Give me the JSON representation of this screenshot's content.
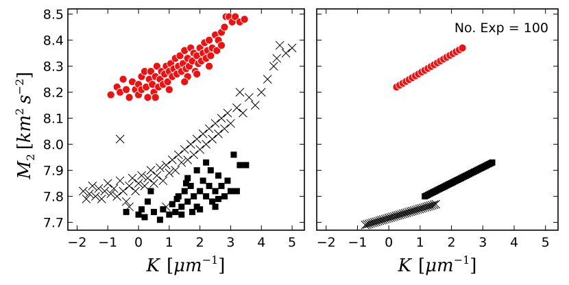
{
  "chart_data": [
    {
      "type": "scatter",
      "panel": "left",
      "xlabel": "K [μm⁻¹]",
      "ylabel": "M₂ [km² s⁻²]",
      "xlabel_parts": {
        "var": "K",
        "unit_open": "[",
        "unit": "μm",
        "exp": "−1",
        "unit_close": "]"
      },
      "ylabel_parts": {
        "var": "M",
        "sub": "2",
        "unit_open": "[",
        "unit1": "km",
        "exp1": "2",
        "unit2": "s",
        "exp2": "−2",
        "unit_close": "]"
      },
      "xlim": [
        -2.3,
        5.4
      ],
      "ylim": [
        7.67,
        8.52
      ],
      "xticks": [
        -2,
        -1,
        0,
        1,
        2,
        3,
        4,
        5
      ],
      "xtick_labels": [
        "−2",
        "−1",
        "0",
        "1",
        "2",
        "3",
        "4",
        "5"
      ],
      "yticks": [
        7.7,
        7.8,
        7.9,
        8.0,
        8.1,
        8.2,
        8.3,
        8.4,
        8.5
      ],
      "ytick_labels": [
        "7.7",
        "7.8",
        "7.9",
        "8.0",
        "8.1",
        "8.2",
        "8.3",
        "8.4",
        "8.5"
      ],
      "grid": false,
      "series": [
        {
          "name": "red circles",
          "marker": "circle",
          "color": "#ee1111",
          "edge": "#ffffff",
          "points": [
            [
              -0.9,
              8.19
            ],
            [
              -0.7,
              8.22
            ],
            [
              -0.6,
              8.2
            ],
            [
              -0.5,
              8.25
            ],
            [
              -0.4,
              8.21
            ],
            [
              -0.3,
              8.18
            ],
            [
              -0.2,
              8.24
            ],
            [
              -0.1,
              8.21
            ],
            [
              0.0,
              8.23
            ],
            [
              0.0,
              8.19
            ],
            [
              0.1,
              8.26
            ],
            [
              0.1,
              8.21
            ],
            [
              0.2,
              8.28
            ],
            [
              0.25,
              8.22
            ],
            [
              0.3,
              8.18
            ],
            [
              0.35,
              8.25
            ],
            [
              0.4,
              8.28
            ],
            [
              0.45,
              8.23
            ],
            [
              0.5,
              8.2
            ],
            [
              0.55,
              8.26
            ],
            [
              0.6,
              8.3
            ],
            [
              0.65,
              8.22
            ],
            [
              0.7,
              8.25
            ],
            [
              0.75,
              8.28
            ],
            [
              0.8,
              8.23
            ],
            [
              0.85,
              8.27
            ],
            [
              0.9,
              8.3
            ],
            [
              0.95,
              8.24
            ],
            [
              1.0,
              8.28
            ],
            [
              1.05,
              8.31
            ],
            [
              1.1,
              8.26
            ],
            [
              1.15,
              8.29
            ],
            [
              1.2,
              8.33
            ],
            [
              1.25,
              8.27
            ],
            [
              1.3,
              8.3
            ],
            [
              1.35,
              8.34
            ],
            [
              1.4,
              8.28
            ],
            [
              1.45,
              8.31
            ],
            [
              1.5,
              8.36
            ],
            [
              1.55,
              8.29
            ],
            [
              1.6,
              8.33
            ],
            [
              1.65,
              8.3
            ],
            [
              1.7,
              8.37
            ],
            [
              1.75,
              8.32
            ],
            [
              1.8,
              8.35
            ],
            [
              1.85,
              8.28
            ],
            [
              1.9,
              8.34
            ],
            [
              1.95,
              8.31
            ],
            [
              2.0,
              8.37
            ],
            [
              2.05,
              8.32
            ],
            [
              2.1,
              8.35
            ],
            [
              2.15,
              8.39
            ],
            [
              2.2,
              8.33
            ],
            [
              2.25,
              8.36
            ],
            [
              2.3,
              8.4
            ],
            [
              2.35,
              8.34
            ],
            [
              2.4,
              8.37
            ],
            [
              2.5,
              8.42
            ],
            [
              2.55,
              8.36
            ],
            [
              2.6,
              8.4
            ],
            [
              2.7,
              8.43
            ],
            [
              2.8,
              8.45
            ],
            [
              2.85,
              8.49
            ],
            [
              2.95,
              8.49
            ],
            [
              3.05,
              8.47
            ],
            [
              3.15,
              8.49
            ],
            [
              3.3,
              8.47
            ],
            [
              3.45,
              8.48
            ],
            [
              1.6,
              8.26
            ],
            [
              1.9,
              8.27
            ],
            [
              2.3,
              8.3
            ],
            [
              2.7,
              8.38
            ],
            [
              0.55,
              8.18
            ],
            [
              1.0,
              8.21
            ],
            [
              1.5,
              8.24
            ]
          ]
        },
        {
          "name": "crosses",
          "marker": "x",
          "color": "#000000",
          "points": [
            [
              -1.8,
              7.82
            ],
            [
              -1.7,
              7.79
            ],
            [
              -1.6,
              7.81
            ],
            [
              -1.5,
              7.84
            ],
            [
              -1.4,
              7.8
            ],
            [
              -1.3,
              7.83
            ],
            [
              -1.2,
              7.79
            ],
            [
              -1.1,
              7.82
            ],
            [
              -1.0,
              7.85
            ],
            [
              -0.9,
              7.81
            ],
            [
              -0.8,
              7.83
            ],
            [
              -0.7,
              7.8
            ],
            [
              -0.6,
              7.86
            ],
            [
              -0.5,
              7.82
            ],
            [
              -0.4,
              7.78
            ],
            [
              -0.3,
              7.84
            ],
            [
              -0.2,
              7.87
            ],
            [
              -0.1,
              7.82
            ],
            [
              0.0,
              7.85
            ],
            [
              0.1,
              7.88
            ],
            [
              0.2,
              7.84
            ],
            [
              0.3,
              7.87
            ],
            [
              0.4,
              7.9
            ],
            [
              0.5,
              7.85
            ],
            [
              0.6,
              7.88
            ],
            [
              0.7,
              7.91
            ],
            [
              0.8,
              7.86
            ],
            [
              0.9,
              7.92
            ],
            [
              1.0,
              7.89
            ],
            [
              1.1,
              7.94
            ],
            [
              1.2,
              7.9
            ],
            [
              1.3,
              7.96
            ],
            [
              1.4,
              7.93
            ],
            [
              1.5,
              7.98
            ],
            [
              1.6,
              7.94
            ],
            [
              1.7,
              8.0
            ],
            [
              1.8,
              7.96
            ],
            [
              1.9,
              8.02
            ],
            [
              2.0,
              7.98
            ],
            [
              2.1,
              8.04
            ],
            [
              2.2,
              8.0
            ],
            [
              2.3,
              8.06
            ],
            [
              2.4,
              8.02
            ],
            [
              2.5,
              8.08
            ],
            [
              2.6,
              8.04
            ],
            [
              2.7,
              8.1
            ],
            [
              2.8,
              8.06
            ],
            [
              2.9,
              8.12
            ],
            [
              3.0,
              8.08
            ],
            [
              3.2,
              8.14
            ],
            [
              3.4,
              8.12
            ],
            [
              3.6,
              8.18
            ],
            [
              3.8,
              8.15
            ],
            [
              4.0,
              8.2
            ],
            [
              4.2,
              8.25
            ],
            [
              4.4,
              8.3
            ],
            [
              4.8,
              8.35
            ],
            [
              4.6,
              8.38
            ],
            [
              4.5,
              8.33
            ],
            [
              5.0,
              8.37
            ],
            [
              -0.6,
              8.02
            ],
            [
              -0.3,
              7.76
            ],
            [
              0.9,
              7.76
            ],
            [
              3.3,
              8.2
            ]
          ]
        },
        {
          "name": "squares",
          "marker": "square",
          "color": "#000000",
          "points": [
            [
              -0.4,
              7.74
            ],
            [
              0.0,
              7.73
            ],
            [
              0.1,
              7.75
            ],
            [
              0.2,
              7.72
            ],
            [
              0.3,
              7.78
            ],
            [
              0.5,
              7.74
            ],
            [
              0.7,
              7.71
            ],
            [
              0.8,
              7.75
            ],
            [
              1.0,
              7.73
            ],
            [
              1.1,
              7.77
            ],
            [
              1.2,
              7.74
            ],
            [
              1.3,
              7.8
            ],
            [
              1.4,
              7.76
            ],
            [
              1.5,
              7.82
            ],
            [
              1.6,
              7.78
            ],
            [
              1.7,
              7.84
            ],
            [
              1.8,
              7.8
            ],
            [
              1.9,
              7.76
            ],
            [
              2.0,
              7.82
            ],
            [
              2.1,
              7.86
            ],
            [
              2.2,
              7.8
            ],
            [
              2.3,
              7.84
            ],
            [
              2.4,
              7.78
            ],
            [
              2.5,
              7.82
            ],
            [
              2.6,
              7.88
            ],
            [
              2.7,
              7.84
            ],
            [
              2.8,
              7.8
            ],
            [
              2.9,
              7.86
            ],
            [
              3.0,
              7.82
            ],
            [
              3.1,
              7.96
            ],
            [
              3.3,
              7.92
            ],
            [
              3.5,
              7.92
            ],
            [
              1.6,
              7.87
            ],
            [
              1.9,
              7.9
            ],
            [
              2.2,
              7.93
            ],
            [
              1.4,
              7.73
            ],
            [
              2.0,
              7.75
            ],
            [
              2.5,
              7.76
            ],
            [
              0.4,
              7.82
            ],
            [
              3.2,
              7.82
            ],
            [
              1.55,
              7.85
            ],
            [
              1.75,
              7.74
            ],
            [
              2.35,
              7.9
            ],
            [
              2.6,
              7.79
            ],
            [
              1.25,
              7.79
            ]
          ]
        }
      ]
    },
    {
      "type": "scatter",
      "panel": "right",
      "xlabel": "K [μm⁻¹]",
      "xlabel_parts": {
        "var": "K",
        "unit_open": "[",
        "unit": "μm",
        "exp": "−1",
        "unit_close": "]"
      },
      "annotation": "No. Exp = 100",
      "xlim": [
        -2.3,
        5.4
      ],
      "ylim": [
        7.67,
        8.52
      ],
      "xticks": [
        -2,
        -1,
        0,
        1,
        2,
        3,
        4,
        5
      ],
      "xtick_labels": [
        "−2",
        "−1",
        "0",
        "1",
        "2",
        "3",
        "4",
        "5"
      ],
      "grid": false,
      "series": [
        {
          "name": "red circles",
          "marker": "circle",
          "color": "#ee1111",
          "edge": "#ffffff",
          "line": {
            "x": [
              0.25,
              2.35
            ],
            "y": [
              8.22,
              8.37
            ]
          },
          "n": 22
        },
        {
          "name": "squares",
          "marker": "square",
          "color": "#000000",
          "line": {
            "x": [
              1.15,
              3.3
            ],
            "y": [
              7.8,
              7.93
            ]
          },
          "n": 42
        },
        {
          "name": "crosses",
          "marker": "x",
          "color": "#000000",
          "line": {
            "x": [
              -0.75,
              1.5
            ],
            "y": [
              7.69,
              7.77
            ]
          },
          "n": 40
        }
      ]
    }
  ]
}
